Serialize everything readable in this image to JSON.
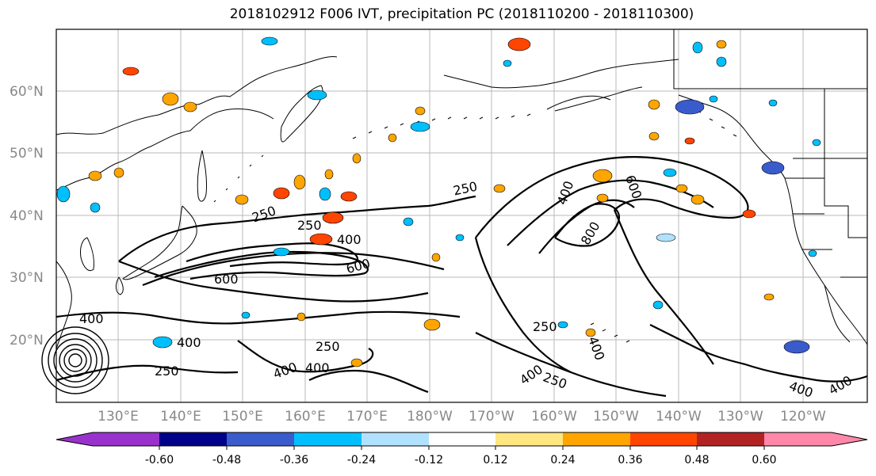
{
  "title": "2018102912 F006 IVT, precipitation PC (2018110200 - 2018110300)",
  "map": {
    "lat_labels": [
      "60°N",
      "50°N",
      "40°N",
      "30°N",
      "20°N"
    ],
    "lon_labels": [
      "130°E",
      "140°E",
      "150°E",
      "160°E",
      "170°E",
      "180°W",
      "170°W",
      "160°W",
      "150°W",
      "140°W",
      "130°W",
      "120°W"
    ],
    "contour_labels": [
      "250",
      "250",
      "400",
      "600",
      "600",
      "250",
      "400",
      "600",
      "800",
      "250",
      "400",
      "400",
      "250",
      "400",
      "250",
      "250",
      "400",
      "400",
      "400",
      "400",
      "400"
    ]
  },
  "colorbar": {
    "tick_labels": [
      "-0.60",
      "-0.48",
      "-0.36",
      "-0.24",
      "-0.12",
      "0.12",
      "0.24",
      "0.36",
      "0.48",
      "0.60"
    ],
    "colors": [
      "#9932CC",
      "#00008B",
      "#3A5BCC",
      "#00BFFF",
      "#B0E2FF",
      "#FFFFFF",
      "#FFE680",
      "#FFA500",
      "#FF4500",
      "#B22222",
      "#FF88AA"
    ]
  }
}
